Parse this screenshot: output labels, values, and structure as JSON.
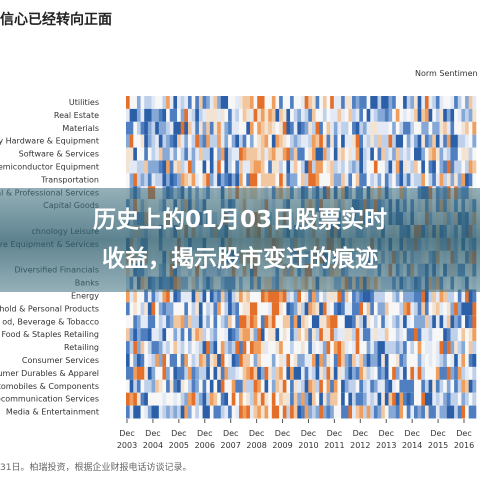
{
  "header": {
    "title": "信心已经转向正面",
    "legend_title": "Norm Sentimen"
  },
  "heatmap": {
    "rows": [
      "Utilities",
      "Real Estate",
      "Materials",
      "y Hardware & Equipment",
      "Software & Services",
      "emiconductor Equipment",
      "Transportation",
      "al & Professional Services",
      "Capital Goods",
      null,
      "chnology Leisure",
      "are Equipment & Services",
      null,
      "Diversified Financials",
      "Banks",
      "Energy",
      "hold & Personal Products",
      "od, Beverage & Tobacco",
      "Food & Staples Retailing",
      "Retailing",
      "Consumer Services",
      "umer Durables & Apparel",
      "tomobiles & Components",
      "ecommunication Services",
      "Media & Entertainment"
    ],
    "columns": [
      {
        "month": "Dec",
        "year": "2003"
      },
      {
        "month": "Dec",
        "year": "2004"
      },
      {
        "month": "Dec",
        "year": "2005"
      },
      {
        "month": "Dec",
        "year": "2006"
      },
      {
        "month": "Dec",
        "year": "2007"
      },
      {
        "month": "Dec",
        "year": "2008"
      },
      {
        "month": "Dec",
        "year": "2009"
      },
      {
        "month": "Dec",
        "year": "2010"
      },
      {
        "month": "Dec",
        "year": "2011"
      },
      {
        "month": "Dec",
        "year": "2012"
      },
      {
        "month": "Dec",
        "year": "2013"
      },
      {
        "month": "Dec",
        "year": "2014"
      },
      {
        "month": "Dec",
        "year": "2015"
      },
      {
        "month": "Dec",
        "year": "2016"
      }
    ]
  },
  "overlay": {
    "line1": "历史上的01月03日股票实时",
    "line2": "收益，揭示股市变迁的痕迹"
  },
  "footer": {
    "note": "31日。柏瑞投资，根据企业财报电话访谈记录。"
  }
}
